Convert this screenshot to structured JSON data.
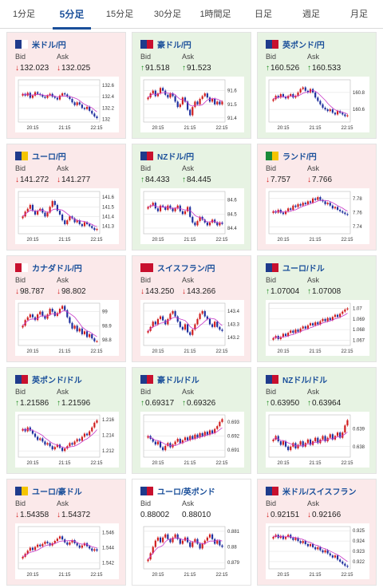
{
  "tabs": [
    {
      "label": "1分足",
      "active": false
    },
    {
      "label": "5分足",
      "active": true
    },
    {
      "label": "15分足",
      "active": false
    },
    {
      "label": "30分足",
      "active": false
    },
    {
      "label": "1時間足",
      "active": false
    },
    {
      "label": "日足",
      "active": false
    },
    {
      "label": "週足",
      "active": false
    },
    {
      "label": "月足",
      "active": false
    }
  ],
  "labels": {
    "bid": "Bid",
    "ask": "Ask"
  },
  "colors": {
    "up": "#1a8a1a",
    "down": "#d41a1a",
    "up_bg": "#e7f3e3",
    "down_bg": "#fbe9ea",
    "link": "#1a4f9a",
    "candle_up": "#d01c1c",
    "candle_down": "#1e2f9e",
    "ma": "#c837c8"
  },
  "cards": [
    {
      "pair": "米ドル/円",
      "flag": [
        "#1f3b8c",
        "#ffffff"
      ],
      "direction": "down",
      "bid": "132.023",
      "ask": "132.025",
      "bid_arrow": "down",
      "ask_arrow": "down",
      "chart_data": {
        "type": "candlestick",
        "x_ticks": [
          "20:15",
          "21:15",
          "22:15"
        ],
        "y_ticks": [
          "132.6",
          "132.4",
          "132.2",
          "132"
        ],
        "ylim": [
          131.95,
          132.7
        ],
        "closes": [
          132.45,
          132.42,
          132.47,
          132.38,
          132.42,
          132.48,
          132.45,
          132.43,
          132.4,
          132.38,
          132.42,
          132.45,
          132.4,
          132.38,
          132.35,
          132.42,
          132.46,
          132.44,
          132.4,
          132.36,
          132.3,
          132.25,
          132.3,
          132.26,
          132.2,
          132.18,
          132.22,
          132.15,
          132.1,
          132.05,
          132.02
        ]
      }
    },
    {
      "pair": "豪ドル/円",
      "flag": [
        "#1f3b8c",
        "#c8102e"
      ],
      "direction": "up",
      "bid": "91.518",
      "ask": "91.523",
      "bid_arrow": "up",
      "ask_arrow": "up",
      "chart_data": {
        "type": "candlestick",
        "x_ticks": [
          "20:15",
          "21:15",
          "22:15"
        ],
        "y_ticks": [
          "91.6",
          "91.5",
          "91.4"
        ],
        "ylim": [
          91.37,
          91.68
        ],
        "closes": [
          91.55,
          91.58,
          91.6,
          91.56,
          91.58,
          91.62,
          91.6,
          91.57,
          91.55,
          91.58,
          91.56,
          91.52,
          91.48,
          91.5,
          91.55,
          91.52,
          91.46,
          91.42,
          91.48,
          91.52,
          91.5,
          91.54,
          91.56,
          91.58,
          91.55,
          91.52,
          91.54,
          91.5,
          91.52,
          91.5,
          91.52
        ]
      }
    },
    {
      "pair": "英ポンド/円",
      "flag": [
        "#1f3b8c",
        "#c8102e"
      ],
      "direction": "up",
      "bid": "160.526",
      "ask": "160.533",
      "bid_arrow": "up",
      "ask_arrow": "up",
      "chart_data": {
        "type": "candlestick",
        "x_ticks": [
          "20:15",
          "21:15",
          "22:15"
        ],
        "y_ticks": [
          "160.8",
          "160.6"
        ],
        "ylim": [
          160.45,
          160.95
        ],
        "closes": [
          160.72,
          160.76,
          160.74,
          160.78,
          160.75,
          160.73,
          160.76,
          160.78,
          160.74,
          160.76,
          160.8,
          160.84,
          160.86,
          160.82,
          160.8,
          160.84,
          160.8,
          160.74,
          160.7,
          160.66,
          160.62,
          160.6,
          160.58,
          160.6,
          160.56,
          160.54,
          160.58,
          160.56,
          160.54,
          160.52,
          160.53
        ]
      }
    },
    {
      "pair": "ユーロ/円",
      "flag": [
        "#1f3b8c",
        "#f5c400"
      ],
      "direction": "down",
      "bid": "141.272",
      "ask": "141.277",
      "bid_arrow": "down",
      "ask_arrow": "down",
      "chart_data": {
        "type": "candlestick",
        "x_ticks": [
          "20:15",
          "21:15",
          "22:15"
        ],
        "y_ticks": [
          "141.6",
          "141.5",
          "141.4",
          "141.3"
        ],
        "ylim": [
          141.22,
          141.66
        ],
        "closes": [
          141.4,
          141.45,
          141.48,
          141.52,
          141.46,
          141.42,
          141.46,
          141.48,
          141.44,
          141.4,
          141.44,
          141.5,
          141.56,
          141.52,
          141.46,
          141.42,
          141.36,
          141.32,
          141.36,
          141.4,
          141.38,
          141.34,
          141.36,
          141.32,
          141.3,
          141.34,
          141.32,
          141.3,
          141.28,
          141.26,
          141.27
        ]
      }
    },
    {
      "pair": "NZドル/円",
      "flag": [
        "#1f3b8c",
        "#c8102e"
      ],
      "direction": "up",
      "bid": "84.433",
      "ask": "84.445",
      "bid_arrow": "up",
      "ask_arrow": "up",
      "chart_data": {
        "type": "candlestick",
        "x_ticks": [
          "20:15",
          "21:15",
          "22:15"
        ],
        "y_ticks": [
          "84.6",
          "84.5",
          "84.4"
        ],
        "ylim": [
          84.36,
          84.66
        ],
        "closes": [
          84.55,
          84.56,
          84.58,
          84.54,
          84.52,
          84.56,
          84.55,
          84.53,
          84.56,
          84.54,
          84.52,
          84.54,
          84.56,
          84.52,
          84.5,
          84.52,
          84.55,
          84.48,
          84.44,
          84.42,
          84.45,
          84.48,
          84.46,
          84.44,
          84.42,
          84.44,
          84.46,
          84.44,
          84.42,
          84.44,
          84.43
        ]
      }
    },
    {
      "pair": "ランド/円",
      "flag": [
        "#1a8a3a",
        "#f5c400"
      ],
      "direction": "down",
      "bid": "7.757",
      "ask": "7.766",
      "bid_arrow": "down",
      "ask_arrow": "down",
      "chart_data": {
        "type": "candlestick",
        "x_ticks": [
          "20:15",
          "21:15",
          "22:15"
        ],
        "y_ticks": [
          "7.78",
          "7.76",
          "7.74"
        ],
        "ylim": [
          7.73,
          7.79
        ],
        "closes": [
          7.762,
          7.76,
          7.764,
          7.76,
          7.758,
          7.762,
          7.766,
          7.764,
          7.77,
          7.768,
          7.772,
          7.77,
          7.774,
          7.772,
          7.776,
          7.774,
          7.78,
          7.778,
          7.782,
          7.778,
          7.776,
          7.772,
          7.774,
          7.77,
          7.766,
          7.768,
          7.764,
          7.762,
          7.76,
          7.758,
          7.757
        ]
      }
    },
    {
      "pair": "カナダドル/円",
      "flag": [
        "#c8102e",
        "#ffffff"
      ],
      "direction": "down",
      "bid": "98.787",
      "ask": "98.802",
      "bid_arrow": "down",
      "ask_arrow": "down",
      "chart_data": {
        "type": "candlestick",
        "x_ticks": [
          "20:15",
          "21:15",
          "22:15"
        ],
        "y_ticks": [
          "99",
          "98.9",
          "98.8"
        ],
        "ylim": [
          98.76,
          99.06
        ],
        "closes": [
          98.9,
          98.94,
          98.96,
          98.98,
          98.96,
          98.94,
          98.98,
          99.0,
          98.97,
          98.95,
          98.98,
          99.02,
          99.0,
          98.97,
          98.99,
          99.02,
          99.04,
          99.01,
          98.96,
          98.92,
          98.88,
          98.9,
          98.86,
          98.88,
          98.84,
          98.86,
          98.82,
          98.84,
          98.81,
          98.79,
          98.79
        ]
      }
    },
    {
      "pair": "スイスフラン/円",
      "flag": [
        "#c8102e",
        "#c8102e"
      ],
      "direction": "down",
      "bid": "143.250",
      "ask": "143.266",
      "bid_arrow": "down",
      "ask_arrow": "down",
      "chart_data": {
        "type": "candlestick",
        "x_ticks": [
          "20:15",
          "21:15",
          "22:15"
        ],
        "y_ticks": [
          "143.4",
          "143.3",
          "143.2"
        ],
        "ylim": [
          143.14,
          143.46
        ],
        "closes": [
          143.25,
          143.28,
          143.32,
          143.3,
          143.34,
          143.36,
          143.33,
          143.3,
          143.34,
          143.38,
          143.4,
          143.36,
          143.32,
          143.28,
          143.26,
          143.3,
          143.24,
          143.22,
          143.26,
          143.3,
          143.34,
          143.38,
          143.4,
          143.36,
          143.34,
          143.3,
          143.28,
          143.32,
          143.28,
          143.26,
          143.25
        ]
      }
    },
    {
      "pair": "ユーロ/ドル",
      "flag": [
        "#1f3b8c",
        "#c8102e"
      ],
      "direction": "up",
      "bid": "1.07004",
      "ask": "1.07008",
      "bid_arrow": "up",
      "ask_arrow": "up",
      "chart_data": {
        "type": "candlestick",
        "x_ticks": [
          "20:15",
          "21:15",
          "22:15"
        ],
        "y_ticks": [
          "1.07",
          "1.069",
          "1.068",
          "1.067"
        ],
        "ylim": [
          1.0665,
          1.0705
        ],
        "closes": [
          1.0672,
          1.0674,
          1.0671,
          1.0673,
          1.0676,
          1.0674,
          1.0677,
          1.0679,
          1.0677,
          1.068,
          1.0678,
          1.0681,
          1.0683,
          1.0681,
          1.0684,
          1.0686,
          1.0684,
          1.0687,
          1.0685,
          1.0688,
          1.069,
          1.0688,
          1.0691,
          1.0689,
          1.0692,
          1.0694,
          1.0692,
          1.0695,
          1.0697,
          1.0699,
          1.07
        ]
      }
    },
    {
      "pair": "英ポンド/ドル",
      "flag": [
        "#1f3b8c",
        "#c8102e"
      ],
      "direction": "up",
      "bid": "1.21586",
      "ask": "1.21596",
      "bid_arrow": "up",
      "ask_arrow": "up",
      "chart_data": {
        "type": "candlestick",
        "x_ticks": [
          "20:15",
          "21:15",
          "22:15"
        ],
        "y_ticks": [
          "1.216",
          "1.214",
          "1.212"
        ],
        "ylim": [
          1.2112,
          1.2166
        ],
        "closes": [
          1.2148,
          1.2145,
          1.215,
          1.2146,
          1.2142,
          1.2138,
          1.2134,
          1.2136,
          1.2132,
          1.2128,
          1.213,
          1.2126,
          1.2122,
          1.2125,
          1.2128,
          1.2124,
          1.212,
          1.2123,
          1.2126,
          1.213,
          1.2128,
          1.2132,
          1.2135,
          1.2133,
          1.2138,
          1.2142,
          1.214,
          1.2145,
          1.215,
          1.2156,
          1.2159
        ]
      }
    },
    {
      "pair": "豪ドル/ドル",
      "flag": [
        "#1f3b8c",
        "#c8102e"
      ],
      "direction": "up",
      "bid": "0.69317",
      "ask": "0.69326",
      "bid_arrow": "up",
      "ask_arrow": "up",
      "chart_data": {
        "type": "candlestick",
        "x_ticks": [
          "20:15",
          "21:15",
          "22:15"
        ],
        "y_ticks": [
          "0.693",
          "0.692",
          "0.691"
        ],
        "ylim": [
          0.6905,
          0.6935
        ],
        "closes": [
          0.692,
          0.6918,
          0.6916,
          0.6914,
          0.6916,
          0.6912,
          0.691,
          0.6913,
          0.6915,
          0.6912,
          0.6914,
          0.6916,
          0.6918,
          0.6915,
          0.6917,
          0.6919,
          0.6917,
          0.692,
          0.6918,
          0.6921,
          0.6919,
          0.6922,
          0.692,
          0.6923,
          0.6921,
          0.6924,
          0.6922,
          0.6925,
          0.6927,
          0.693,
          0.6932
        ]
      }
    },
    {
      "pair": "NZドル/ドル",
      "flag": [
        "#1f3b8c",
        "#c8102e"
      ],
      "direction": "up",
      "bid": "0.63950",
      "ask": "0.63964",
      "bid_arrow": "up",
      "ask_arrow": "up",
      "chart_data": {
        "type": "candlestick",
        "x_ticks": [
          "20:15",
          "21:15",
          "22:15"
        ],
        "y_ticks": [
          "0.639",
          "0.638"
        ],
        "ylim": [
          0.6374,
          0.6398
        ],
        "closes": [
          0.6384,
          0.6386,
          0.6383,
          0.6381,
          0.6383,
          0.638,
          0.6378,
          0.638,
          0.6382,
          0.6379,
          0.6381,
          0.6383,
          0.638,
          0.6382,
          0.6384,
          0.6381,
          0.6383,
          0.6385,
          0.6382,
          0.6384,
          0.6386,
          0.6383,
          0.6385,
          0.6387,
          0.6384,
          0.6386,
          0.6388,
          0.6385,
          0.6388,
          0.6392,
          0.6395
        ]
      }
    },
    {
      "pair": "ユーロ/豪ドル",
      "flag": [
        "#1f3b8c",
        "#f5c400"
      ],
      "direction": "down",
      "bid": "1.54358",
      "ask": "1.54372",
      "bid_arrow": "down",
      "ask_arrow": "down",
      "chart_data": {
        "type": "candlestick",
        "x_ticks": [
          "20:15",
          "21:15",
          "22:15"
        ],
        "y_ticks": [
          "1.546",
          "1.544",
          "1.542"
        ],
        "ylim": [
          1.5412,
          1.5468
        ],
        "closes": [
          1.5428,
          1.5432,
          1.5436,
          1.544,
          1.5437,
          1.5441,
          1.5444,
          1.5442,
          1.5445,
          1.5448,
          1.5446,
          1.5443,
          1.5446,
          1.5449,
          1.5452,
          1.5455,
          1.5451,
          1.5447,
          1.5444,
          1.5447,
          1.545,
          1.5446,
          1.5443,
          1.544,
          1.5443,
          1.5446,
          1.5442,
          1.5439,
          1.5436,
          1.5438,
          1.5436
        ]
      }
    },
    {
      "pair": "ユーロ/英ポンド",
      "flag": [
        "#1f3b8c",
        "#c8102e"
      ],
      "direction": "flat",
      "bid": "0.88002",
      "ask": "0.88010",
      "bid_arrow": "",
      "ask_arrow": "",
      "chart_data": {
        "type": "candlestick",
        "x_ticks": [
          "20:15",
          "21:15",
          "22:15"
        ],
        "y_ticks": [
          "0.881",
          "0.88",
          "0.879"
        ],
        "ylim": [
          0.8786,
          0.8813
        ],
        "closes": [
          0.8792,
          0.8796,
          0.88,
          0.8804,
          0.8806,
          0.8803,
          0.8806,
          0.8808,
          0.8805,
          0.8803,
          0.8806,
          0.8808,
          0.8805,
          0.8802,
          0.8804,
          0.8806,
          0.8803,
          0.88,
          0.8803,
          0.8805,
          0.8802,
          0.8799,
          0.8802,
          0.8804,
          0.8806,
          0.8808,
          0.8805,
          0.8802,
          0.8804,
          0.8801,
          0.88
        ]
      }
    },
    {
      "pair": "米ドル/スイスフラン",
      "flag": [
        "#1f3b8c",
        "#c8102e"
      ],
      "direction": "down",
      "bid": "0.92151",
      "ask": "0.92166",
      "bid_arrow": "down",
      "ask_arrow": "down",
      "chart_data": {
        "type": "candlestick",
        "x_ticks": [
          "20:15",
          "21:15",
          "22:15"
        ],
        "y_ticks": [
          "0.925",
          "0.924",
          "0.923",
          "0.922"
        ],
        "ylim": [
          0.9213,
          0.9254
        ],
        "closes": [
          0.9244,
          0.9246,
          0.9243,
          0.9245,
          0.9242,
          0.9244,
          0.9246,
          0.9243,
          0.9241,
          0.9243,
          0.924,
          0.9238,
          0.924,
          0.9237,
          0.9235,
          0.9237,
          0.9234,
          0.9232,
          0.9234,
          0.9231,
          0.9229,
          0.9231,
          0.9228,
          0.9226,
          0.9224,
          0.9226,
          0.9222,
          0.922,
          0.9218,
          0.9216,
          0.9215
        ]
      }
    }
  ]
}
